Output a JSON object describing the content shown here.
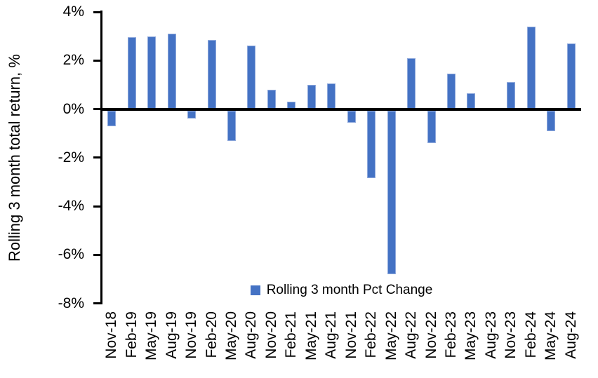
{
  "chart_data": {
    "type": "bar",
    "title": "",
    "ylabel": "Rolling 3 month total return, %",
    "xlabel": "",
    "legend_label": "Rolling 3 month Pct Change",
    "legend_position": "bottom-center-inside-plot",
    "grid": false,
    "ylim": [
      -8,
      4
    ],
    "ytick_values": [
      4,
      2,
      0,
      -2,
      -4,
      -6,
      -8
    ],
    "ytick_labels": [
      "4%",
      "2%",
      "0%",
      "-2%",
      "-4%",
      "-6%",
      "-8%"
    ],
    "categories": [
      "Nov-18",
      "Feb-19",
      "May-19",
      "Aug-19",
      "Nov-19",
      "Feb-20",
      "May-20",
      "Aug-20",
      "Nov-20",
      "Feb-21",
      "May-21",
      "Aug-21",
      "Nov-21",
      "Feb-22",
      "May-22",
      "Aug-22",
      "Nov-22",
      "Feb-23",
      "May-23",
      "Aug-23",
      "Nov-23",
      "Feb-24",
      "May-24",
      "Aug-24"
    ],
    "values": [
      -0.7,
      2.95,
      3.0,
      3.1,
      -0.4,
      2.85,
      -1.3,
      2.6,
      0.8,
      0.3,
      1.0,
      1.05,
      -0.55,
      -2.85,
      -6.8,
      2.1,
      -1.4,
      1.45,
      0.65,
      0.0,
      1.1,
      3.4,
      -0.9,
      2.7
    ],
    "bar_color": "#4472C4",
    "axis_color": "#000000",
    "background_color": "#FFFFFF"
  }
}
